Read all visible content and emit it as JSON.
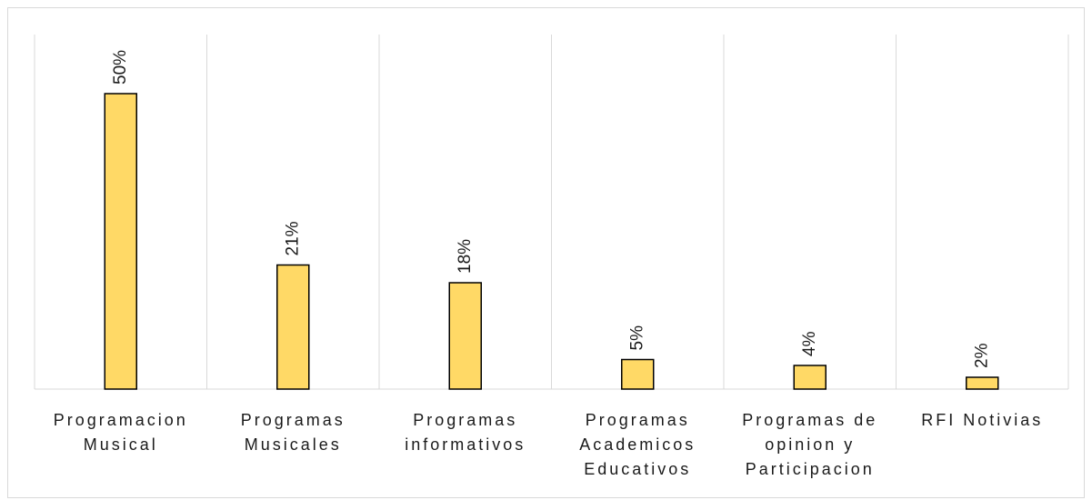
{
  "chart_data": {
    "type": "bar",
    "categories": [
      "Programacion Musical",
      "Programas Musicales",
      "Programas informativos",
      "Programas Academicos Educativos",
      "Programas de opinion y Participacion",
      "RFI Notivias"
    ],
    "values": [
      50,
      21,
      18,
      5,
      4,
      2
    ],
    "value_labels": [
      "50%",
      "21%",
      "18%",
      "5%",
      "4%",
      "2%"
    ],
    "color": "#FFD966",
    "grid": true
  }
}
